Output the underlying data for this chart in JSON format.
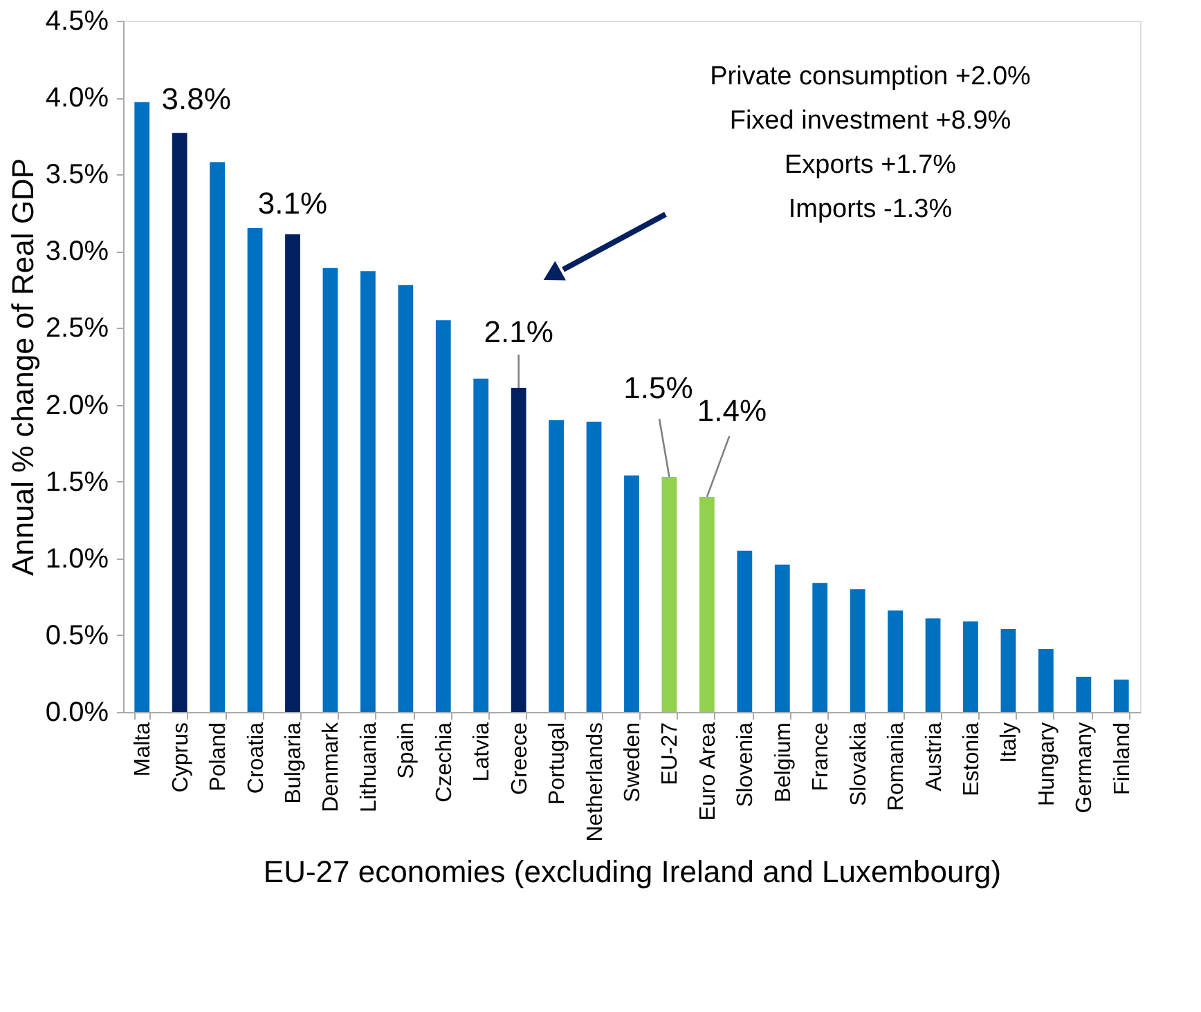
{
  "chart_data": {
    "type": "bar",
    "xlabel": "EU-27 economies (excluding Ireland and Luxembourg)",
    "ylabel": "Annual % change of Real GDP",
    "categories": [
      "Malta",
      "Cyprus",
      "Poland",
      "Croatia",
      "Bulgaria",
      "Denmark",
      "Lithuania",
      "Spain",
      "Czechia",
      "Latvia",
      "Greece",
      "Portugal",
      "Netherlands",
      "Sweden",
      "EU-27",
      "Euro Area",
      "Slovenia",
      "Belgium",
      "France",
      "Slovakia",
      "Romania",
      "Austria",
      "Estonia",
      "Italy",
      "Hungary",
      "Germany",
      "Finland"
    ],
    "values": [
      3.97,
      3.77,
      3.58,
      3.15,
      3.11,
      2.89,
      2.87,
      2.78,
      2.55,
      2.17,
      2.11,
      1.9,
      1.89,
      1.54,
      1.53,
      1.4,
      1.05,
      0.96,
      0.84,
      0.8,
      0.66,
      0.61,
      0.59,
      0.54,
      0.41,
      0.23,
      0.21
    ],
    "colors": [
      "#0070c0",
      "#002060",
      "#0070c0",
      "#0070c0",
      "#002060",
      "#0070c0",
      "#0070c0",
      "#0070c0",
      "#0070c0",
      "#0070c0",
      "#002060",
      "#0070c0",
      "#0070c0",
      "#0070c0",
      "#92d050",
      "#92d050",
      "#0070c0",
      "#0070c0",
      "#0070c0",
      "#0070c0",
      "#0070c0",
      "#0070c0",
      "#0070c0",
      "#0070c0",
      "#0070c0",
      "#0070c0",
      "#0070c0"
    ],
    "value_labels": [
      null,
      "3.8%",
      null,
      null,
      "3.1%",
      null,
      null,
      null,
      null,
      null,
      "2.1%",
      null,
      null,
      null,
      "1.5%",
      "1.4%",
      null,
      null,
      null,
      null,
      null,
      null,
      null,
      null,
      null,
      null,
      null
    ],
    "ylim": [
      0,
      4.5
    ],
    "yticks": [
      {
        "value": 0,
        "label": "0.0%"
      },
      {
        "value": 0.5,
        "label": "0.5%"
      },
      {
        "value": 1,
        "label": "1.0%"
      },
      {
        "value": 1.5,
        "label": "1.5%"
      },
      {
        "value": 2,
        "label": "2.0%"
      },
      {
        "value": 2.5,
        "label": "2.5%"
      },
      {
        "value": 3,
        "label": "3.0%"
      },
      {
        "value": 3.5,
        "label": "3.5%"
      },
      {
        "value": 4,
        "label": "4.0%"
      },
      {
        "value": 4.5,
        "label": "4.5%"
      }
    ],
    "annotations": [
      "Private consumption +2.0%",
      "Fixed investment +8.9%",
      "Exports +1.7%",
      "Imports -1.3%"
    ],
    "grid": false
  }
}
